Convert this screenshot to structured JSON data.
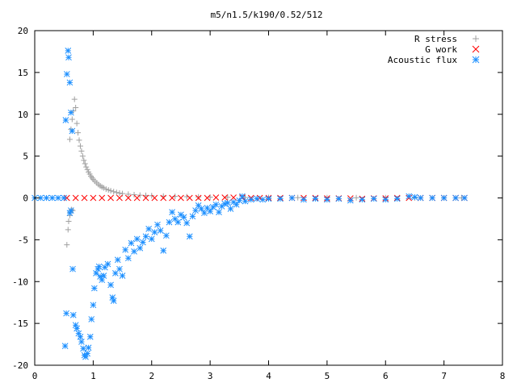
{
  "chart_data": {
    "type": "scatter",
    "title": "m5/n1.5/k190/0.52/512",
    "xlabel": "",
    "ylabel": "",
    "xlim": [
      0,
      8
    ],
    "ylim": [
      -20,
      20
    ],
    "xticks": [
      0,
      1,
      2,
      3,
      4,
      5,
      6,
      7,
      8
    ],
    "yticks": [
      -20,
      -15,
      -10,
      -5,
      0,
      5,
      10,
      15,
      20
    ],
    "grid": false,
    "legend_position": "top-right",
    "series": [
      {
        "name": "R stress",
        "marker": "plus",
        "color": "#a0a0a0",
        "points": [
          [
            0.55,
            -5.6
          ],
          [
            0.57,
            -3.8
          ],
          [
            0.58,
            -2.8
          ],
          [
            0.6,
            -2.1
          ],
          [
            0.61,
            -1.7
          ],
          [
            0.63,
            -1.4
          ],
          [
            0.65,
            -1.5
          ],
          [
            0.6,
            7.0
          ],
          [
            0.62,
            8.2
          ],
          [
            0.64,
            9.4
          ],
          [
            0.66,
            10.4
          ],
          [
            0.68,
            11.8
          ],
          [
            0.7,
            10.8
          ],
          [
            0.72,
            8.9
          ],
          [
            0.74,
            7.8
          ],
          [
            0.76,
            6.9
          ],
          [
            0.78,
            6.2
          ],
          [
            0.8,
            5.6
          ],
          [
            0.82,
            5.0
          ],
          [
            0.84,
            4.5
          ],
          [
            0.86,
            4.1
          ],
          [
            0.88,
            3.7
          ],
          [
            0.9,
            3.4
          ],
          [
            0.92,
            3.1
          ],
          [
            0.94,
            2.85
          ],
          [
            0.96,
            2.6
          ],
          [
            0.98,
            2.4
          ],
          [
            1.0,
            2.2
          ],
          [
            1.03,
            2.0
          ],
          [
            1.06,
            1.8
          ],
          [
            1.09,
            1.6
          ],
          [
            1.12,
            1.45
          ],
          [
            1.15,
            1.3
          ],
          [
            1.18,
            1.2
          ],
          [
            1.22,
            1.05
          ],
          [
            1.26,
            0.95
          ],
          [
            1.3,
            0.85
          ],
          [
            1.35,
            0.75
          ],
          [
            1.4,
            0.65
          ],
          [
            1.45,
            0.58
          ],
          [
            1.5,
            0.52
          ],
          [
            1.6,
            0.45
          ],
          [
            1.7,
            0.38
          ],
          [
            1.8,
            0.33
          ],
          [
            1.9,
            0.3
          ],
          [
            2.0,
            0.27
          ],
          [
            2.2,
            0.22
          ],
          [
            2.4,
            0.18
          ],
          [
            2.6,
            0.15
          ],
          [
            2.8,
            0.12
          ],
          [
            3.0,
            0.1
          ],
          [
            3.3,
            0.08
          ],
          [
            3.6,
            0.06
          ],
          [
            4.0,
            0.05
          ],
          [
            4.5,
            0.04
          ],
          [
            5.0,
            0.03
          ],
          [
            5.5,
            0.02
          ],
          [
            6.0,
            0.02
          ],
          [
            6.5,
            0.01
          ],
          [
            7.0,
            0.01
          ],
          [
            7.3,
            0.01
          ]
        ]
      },
      {
        "name": "G work",
        "marker": "cross",
        "color": "#ff0000",
        "points": [
          [
            0.55,
            0.0
          ],
          [
            0.7,
            0.0
          ],
          [
            0.85,
            0.0
          ],
          [
            1.0,
            0.0
          ],
          [
            1.15,
            0.0
          ],
          [
            1.3,
            0.0
          ],
          [
            1.45,
            0.0
          ],
          [
            1.6,
            0.0
          ],
          [
            1.75,
            0.0
          ],
          [
            1.9,
            0.0
          ],
          [
            2.05,
            0.0
          ],
          [
            2.2,
            0.0
          ],
          [
            2.35,
            0.0
          ],
          [
            2.5,
            0.0
          ],
          [
            2.65,
            0.0
          ],
          [
            2.8,
            0.0
          ],
          [
            2.95,
            0.0
          ],
          [
            3.1,
            0.05
          ],
          [
            3.25,
            0.05
          ],
          [
            3.4,
            0.05
          ],
          [
            3.55,
            0.05
          ],
          [
            3.7,
            0.0
          ],
          [
            3.85,
            0.0
          ],
          [
            4.0,
            0.0
          ],
          [
            4.2,
            0.0
          ],
          [
            4.4,
            0.0
          ],
          [
            4.6,
            0.0
          ],
          [
            4.8,
            0.0
          ],
          [
            5.0,
            -0.05
          ],
          [
            5.2,
            -0.05
          ],
          [
            5.4,
            -0.05
          ],
          [
            5.6,
            -0.1
          ],
          [
            5.8,
            -0.05
          ],
          [
            6.0,
            -0.05
          ],
          [
            6.2,
            0.0
          ],
          [
            6.4,
            0.0
          ],
          [
            6.6,
            0.0
          ],
          [
            6.8,
            0.0
          ],
          [
            7.0,
            0.0
          ],
          [
            7.2,
            0.0
          ],
          [
            7.35,
            0.0
          ]
        ]
      },
      {
        "name": "Acoustic flux",
        "marker": "star",
        "color": "#1e90ff",
        "points": [
          [
            0.0,
            0.0
          ],
          [
            0.1,
            0.0
          ],
          [
            0.2,
            0.0
          ],
          [
            0.3,
            0.0
          ],
          [
            0.4,
            0.0
          ],
          [
            0.5,
            0.0
          ],
          [
            0.53,
            9.3
          ],
          [
            0.55,
            14.8
          ],
          [
            0.57,
            17.6
          ],
          [
            0.58,
            16.8
          ],
          [
            0.6,
            13.8
          ],
          [
            0.62,
            10.2
          ],
          [
            0.64,
            8.0
          ],
          [
            0.52,
            -17.7
          ],
          [
            0.54,
            -13.8
          ],
          [
            0.6,
            -1.8
          ],
          [
            0.62,
            -1.5
          ],
          [
            0.65,
            -8.5
          ],
          [
            0.66,
            -14.0
          ],
          [
            0.7,
            -15.2
          ],
          [
            0.72,
            -15.6
          ],
          [
            0.75,
            -16.2
          ],
          [
            0.78,
            -16.6
          ],
          [
            0.8,
            -17.2
          ],
          [
            0.83,
            -18.0
          ],
          [
            0.85,
            -18.8
          ],
          [
            0.87,
            -19.0
          ],
          [
            0.9,
            -18.6
          ],
          [
            0.92,
            -17.9
          ],
          [
            0.95,
            -16.6
          ],
          [
            0.97,
            -14.5
          ],
          [
            1.0,
            -12.8
          ],
          [
            1.02,
            -10.8
          ],
          [
            1.05,
            -9.0
          ],
          [
            1.08,
            -8.5
          ],
          [
            1.1,
            -8.2
          ],
          [
            1.12,
            -9.4
          ],
          [
            1.15,
            -9.8
          ],
          [
            1.18,
            -9.3
          ],
          [
            1.2,
            -8.3
          ],
          [
            1.25,
            -7.9
          ],
          [
            1.3,
            -10.4
          ],
          [
            1.33,
            -11.9
          ],
          [
            1.35,
            -12.3
          ],
          [
            1.38,
            -9.0
          ],
          [
            1.42,
            -7.4
          ],
          [
            1.45,
            -8.5
          ],
          [
            1.5,
            -9.3
          ],
          [
            1.55,
            -6.2
          ],
          [
            1.6,
            -7.2
          ],
          [
            1.65,
            -5.4
          ],
          [
            1.7,
            -6.4
          ],
          [
            1.75,
            -4.9
          ],
          [
            1.8,
            -6.0
          ],
          [
            1.85,
            -5.3
          ],
          [
            1.9,
            -4.6
          ],
          [
            1.95,
            -3.7
          ],
          [
            2.0,
            -4.9
          ],
          [
            2.05,
            -4.1
          ],
          [
            2.1,
            -3.2
          ],
          [
            2.15,
            -3.9
          ],
          [
            2.2,
            -6.3
          ],
          [
            2.25,
            -4.5
          ],
          [
            2.3,
            -2.9
          ],
          [
            2.35,
            -1.7
          ],
          [
            2.4,
            -2.5
          ],
          [
            2.45,
            -2.9
          ],
          [
            2.5,
            -2.0
          ],
          [
            2.55,
            -2.3
          ],
          [
            2.6,
            -3.0
          ],
          [
            2.65,
            -4.6
          ],
          [
            2.7,
            -2.2
          ],
          [
            2.75,
            -1.5
          ],
          [
            2.8,
            -0.9
          ],
          [
            2.85,
            -1.3
          ],
          [
            2.9,
            -1.8
          ],
          [
            2.95,
            -1.2
          ],
          [
            3.0,
            -1.6
          ],
          [
            3.05,
            -1.1
          ],
          [
            3.1,
            -0.8
          ],
          [
            3.15,
            -1.7
          ],
          [
            3.2,
            -1.0
          ],
          [
            3.25,
            -0.7
          ],
          [
            3.3,
            -0.6
          ],
          [
            3.35,
            -1.3
          ],
          [
            3.4,
            -0.5
          ],
          [
            3.45,
            -0.8
          ],
          [
            3.5,
            -0.3
          ],
          [
            3.55,
            0.2
          ],
          [
            3.6,
            -0.4
          ],
          [
            3.7,
            -0.2
          ],
          [
            3.8,
            -0.1
          ],
          [
            3.9,
            -0.2
          ],
          [
            4.0,
            -0.1
          ],
          [
            4.2,
            -0.1
          ],
          [
            4.4,
            0.0
          ],
          [
            4.6,
            -0.2
          ],
          [
            4.8,
            -0.1
          ],
          [
            5.0,
            -0.2
          ],
          [
            5.2,
            -0.1
          ],
          [
            5.4,
            -0.3
          ],
          [
            5.6,
            -0.2
          ],
          [
            5.8,
            -0.1
          ],
          [
            6.0,
            -0.2
          ],
          [
            6.2,
            -0.1
          ],
          [
            6.4,
            0.2
          ],
          [
            6.5,
            0.1
          ],
          [
            6.6,
            0.0
          ],
          [
            6.8,
            0.0
          ],
          [
            7.0,
            0.0
          ],
          [
            7.2,
            0.0
          ],
          [
            7.35,
            0.0
          ]
        ]
      }
    ]
  }
}
